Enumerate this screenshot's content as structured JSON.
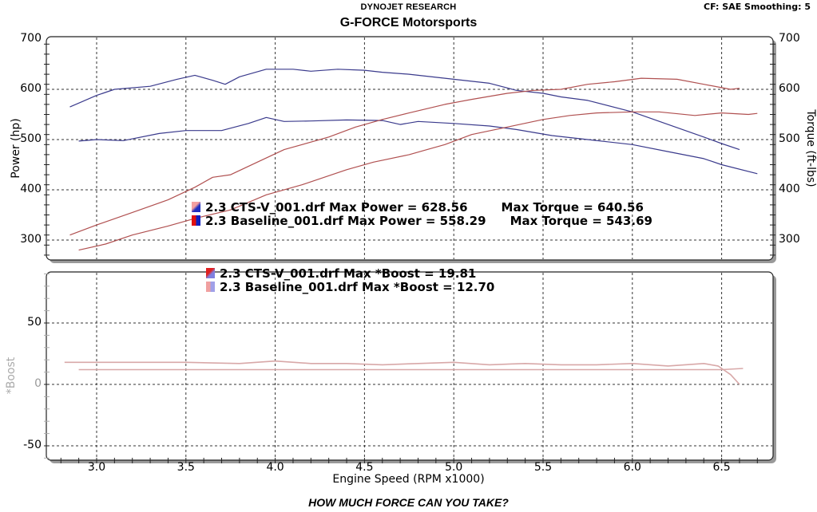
{
  "header": {
    "subtitle": "DYNOJET RESEARCH",
    "title": "G-FORCE Motorsports",
    "settings": "CF: SAE  Smoothing: 5"
  },
  "footer": {
    "tagline": "HOW MUCH FORCE CAN YOU TAKE?"
  },
  "axes": {
    "x_label": "Engine Speed (RPM x1000)",
    "x_ticks": [
      "3.0",
      "3.5",
      "4.0",
      "4.5",
      "5.0",
      "5.5",
      "6.0",
      "6.5"
    ],
    "left_label": "Power (hp)",
    "left_ticks": [
      "700",
      "600",
      "500",
      "400",
      "300"
    ],
    "right_label": "Torque (ft-lbs)",
    "right_ticks": [
      "700",
      "600",
      "500",
      "400",
      "300"
    ],
    "boost_label": "*Boost",
    "boost_ticks": [
      "50",
      "0",
      "-50"
    ]
  },
  "legend_top": [
    {
      "text": "2.3 CTS-V_001.drf Max Power = 628.56",
      "torque_text": "Max Torque = 640.56"
    },
    {
      "text": "2.3 Baseline_001.drf Max Power = 558.29",
      "torque_text": "Max Torque = 543.69"
    }
  ],
  "legend_bottom": [
    {
      "text": "2.3 CTS-V_001.drf Max *Boost = 19.81"
    },
    {
      "text": "2.3 Baseline_001.drf Max *Boost = 12.70"
    }
  ],
  "colors": {
    "torque_line": "#3a3a8c",
    "power_line": "#b05050",
    "boost_line": "#d8a8a8",
    "grid": "#333333",
    "frame_shadow": "#9a9a9a"
  },
  "chart_data": [
    {
      "type": "line",
      "title": "G-FORCE Motorsports",
      "subtitle": "DYNOJET RESEARCH",
      "xlabel": "Engine Speed (RPM x1000)",
      "ylabel": "Power (hp)",
      "ylabel_right": "Torque (ft-lbs)",
      "xlim": [
        2.78,
        6.8
      ],
      "ylim": [
        260,
        700
      ],
      "grid": true,
      "series": [
        {
          "name": "2.3 CTS-V_001.drf Torque",
          "axis": "right",
          "color": "#3a3a8c",
          "x": [
            2.85,
            3.0,
            3.1,
            3.3,
            3.45,
            3.55,
            3.65,
            3.72,
            3.8,
            3.95,
            4.1,
            4.2,
            4.35,
            4.5,
            4.6,
            4.75,
            5.0,
            5.2,
            5.35,
            5.5,
            5.6,
            5.75,
            6.0,
            6.2,
            6.4,
            6.5,
            6.6
          ],
          "y": [
            565,
            588,
            600,
            606,
            620,
            628,
            618,
            610,
            625,
            640,
            640,
            636,
            640,
            638,
            634,
            630,
            620,
            612,
            598,
            592,
            585,
            578,
            555,
            530,
            505,
            492,
            480
          ]
        },
        {
          "name": "2.3 Baseline_001.drf Torque",
          "axis": "right",
          "color": "#3a3a8c",
          "x": [
            2.9,
            3.0,
            3.15,
            3.35,
            3.5,
            3.7,
            3.85,
            3.95,
            4.05,
            4.2,
            4.4,
            4.6,
            4.7,
            4.8,
            5.0,
            5.2,
            5.35,
            5.55,
            5.75,
            6.0,
            6.2,
            6.4,
            6.5,
            6.7
          ],
          "y": [
            497,
            500,
            498,
            512,
            518,
            518,
            532,
            544,
            536,
            537,
            539,
            538,
            530,
            536,
            532,
            527,
            520,
            508,
            500,
            490,
            476,
            462,
            450,
            432
          ]
        },
        {
          "name": "2.3 CTS-V_001.drf Power",
          "axis": "left",
          "color": "#b05050",
          "x": [
            2.85,
            3.0,
            3.2,
            3.4,
            3.55,
            3.65,
            3.75,
            3.9,
            4.05,
            4.3,
            4.45,
            4.6,
            4.75,
            4.95,
            5.1,
            5.3,
            5.45,
            5.6,
            5.75,
            5.9,
            6.05,
            6.25,
            6.4,
            6.55,
            6.6
          ],
          "y": [
            310,
            330,
            355,
            380,
            405,
            425,
            430,
            455,
            480,
            505,
            525,
            540,
            553,
            570,
            580,
            592,
            598,
            600,
            610,
            615,
            622,
            620,
            610,
            600,
            602
          ]
        },
        {
          "name": "2.3 Baseline_001.drf Power",
          "axis": "left",
          "color": "#b05050",
          "x": [
            2.9,
            3.05,
            3.2,
            3.4,
            3.55,
            3.75,
            3.95,
            4.15,
            4.4,
            4.55,
            4.75,
            4.85,
            4.95,
            5.1,
            5.3,
            5.5,
            5.65,
            5.8,
            6.0,
            6.15,
            6.35,
            6.5,
            6.65,
            6.7
          ],
          "y": [
            280,
            292,
            310,
            328,
            343,
            360,
            390,
            410,
            440,
            455,
            470,
            480,
            490,
            510,
            525,
            540,
            548,
            553,
            555,
            555,
            548,
            553,
            550,
            552
          ]
        }
      ],
      "annotations": [
        "2.3 CTS-V_001.drf Max Power = 628.56   Max Torque = 640.56",
        "2.3 Baseline_001.drf Max Power = 558.29   Max Torque = 543.69"
      ]
    },
    {
      "type": "line",
      "title": "",
      "xlabel": "Engine Speed (RPM x1000)",
      "ylabel": "*Boost",
      "xlim": [
        2.78,
        6.8
      ],
      "ylim": [
        -60,
        90
      ],
      "grid": true,
      "series": [
        {
          "name": "2.3 CTS-V_001.drf *Boost",
          "color": "#d8a8a8",
          "x": [
            2.82,
            3.0,
            3.5,
            3.8,
            4.0,
            4.2,
            4.4,
            4.6,
            4.8,
            5.0,
            5.2,
            5.4,
            5.6,
            5.8,
            6.0,
            6.2,
            6.4,
            6.48,
            6.55,
            6.6
          ],
          "y": [
            18,
            18,
            18,
            17,
            19,
            17,
            17,
            16,
            17,
            18,
            16,
            17,
            16,
            16,
            17,
            15,
            17,
            15,
            8,
            0
          ]
        },
        {
          "name": "2.3 Baseline_001.drf *Boost",
          "color": "#d8a8a8",
          "x": [
            2.9,
            3.5,
            4.0,
            4.5,
            5.0,
            5.5,
            6.0,
            6.5,
            6.62
          ],
          "y": [
            12,
            12,
            12,
            12,
            12,
            12,
            12,
            12,
            13
          ]
        }
      ],
      "annotations": [
        "2.3 CTS-V_001.drf Max *Boost = 19.81",
        "2.3 Baseline_001.drf Max *Boost = 12.70"
      ]
    }
  ]
}
